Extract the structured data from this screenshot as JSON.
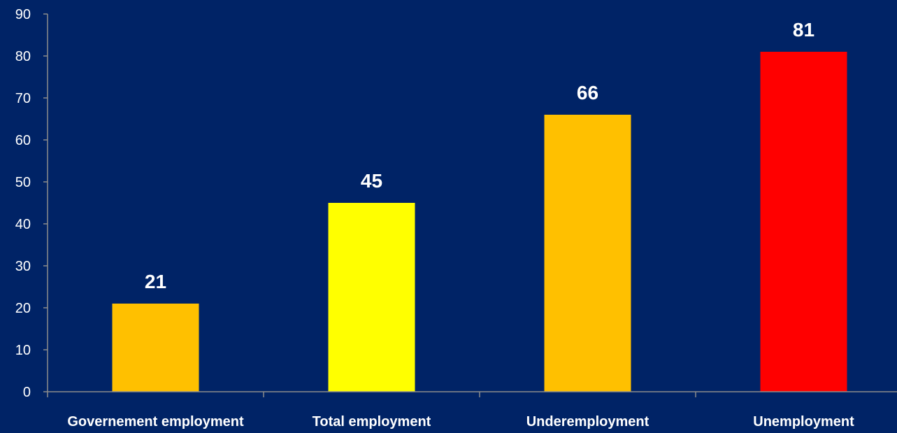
{
  "chart_data": {
    "type": "bar",
    "categories": [
      "Governement employment",
      "Total employment",
      "Underemployment",
      "Unemployment"
    ],
    "values": [
      21,
      45,
      66,
      81
    ],
    "bar_colors": [
      "#FFC000",
      "#FFFF00",
      "#FFC000",
      "#FF0000"
    ],
    "data_labels": [
      "21",
      "45",
      "66",
      "81"
    ],
    "ylim": [
      0,
      90
    ],
    "yticks": [
      0,
      10,
      20,
      30,
      40,
      50,
      60,
      70,
      80,
      90
    ],
    "title": "",
    "xlabel": "",
    "ylabel": "",
    "grid": false,
    "legend": "none"
  },
  "colors": {
    "background": "#002366",
    "text": "#FFFFFF",
    "axis": "#8C8C8C"
  }
}
